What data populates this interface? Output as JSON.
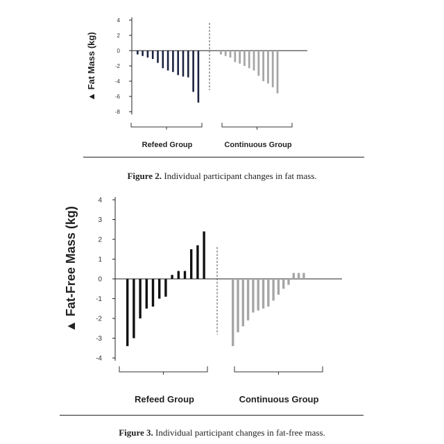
{
  "figures": [
    {
      "caption_label": "Figure 2.",
      "caption_text": " Individual participant changes in fat mass."
    },
    {
      "caption_label": "Figure 3.",
      "caption_text": " Individual participant changes in fat-free mass."
    }
  ],
  "chart_data": [
    {
      "type": "bar",
      "ylabel": "▲ Fat Mass (kg)",
      "ylim": [
        -8,
        4
      ],
      "yticks": [
        4,
        2,
        0,
        -2,
        -4,
        -6,
        -8
      ],
      "grid": false,
      "groups": [
        {
          "name": "Refeed Group",
          "color": "#1c2340",
          "values": [
            -0.5,
            -0.7,
            -0.9,
            -1.1,
            -1.6,
            -2.3,
            -2.6,
            -2.8,
            -3.2,
            -3.4,
            -3.5,
            -5.4,
            -6.8
          ]
        },
        {
          "name": "Continuous Group",
          "color": "#a6a6a6",
          "values": [
            -0.5,
            -0.7,
            -0.9,
            -1.5,
            -1.7,
            -2.0,
            -2.3,
            -2.6,
            -3.3,
            -4.0,
            -4.3,
            -4.8,
            -5.6
          ]
        }
      ]
    },
    {
      "type": "bar",
      "ylabel": "▲ Fat-Free Mass (kg)",
      "ylim": [
        -4,
        4
      ],
      "yticks": [
        4,
        3,
        2,
        1,
        0,
        -1,
        -2,
        -3,
        -4
      ],
      "grid": false,
      "groups": [
        {
          "name": "Refeed Group",
          "color": "#111111",
          "values": [
            -3.4,
            -3.0,
            -2.0,
            -1.5,
            -1.4,
            -1.0,
            -0.9,
            0.2,
            0.4,
            0.4,
            1.5,
            1.7,
            2.4
          ]
        },
        {
          "name": "Continuous Group",
          "color": "#a6a6a6",
          "values": [
            -3.4,
            -2.7,
            -2.4,
            -2.1,
            -1.7,
            -1.6,
            -1.5,
            -1.4,
            -1.1,
            -0.8,
            -0.5,
            -0.3,
            0.3,
            0.3,
            0.3
          ]
        }
      ]
    }
  ]
}
